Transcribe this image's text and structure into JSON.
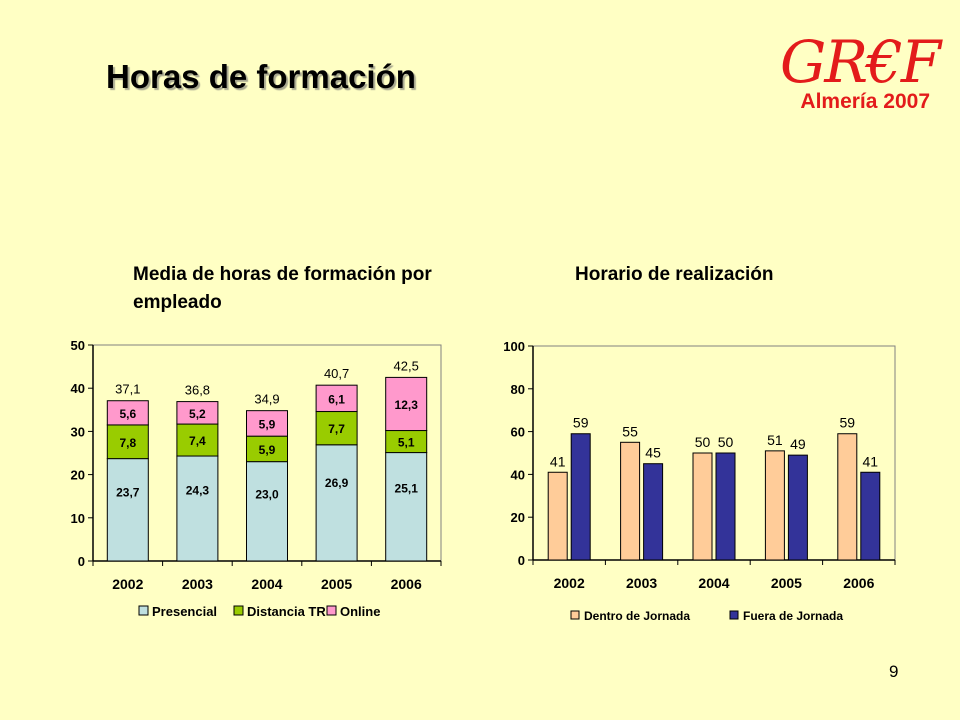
{
  "slide": {
    "title": "Horas de formación",
    "page_number": "9"
  },
  "logo": {
    "word": "GR€F",
    "subtitle": "Almería 2007",
    "color": "#E31B1B"
  },
  "chart_data": [
    {
      "type": "bar",
      "stacked": true,
      "title": "Media de horas de formación por empleado",
      "categories": [
        "2002",
        "2003",
        "2004",
        "2005",
        "2006"
      ],
      "series": [
        {
          "name": "Presencial",
          "values": [
            23.7,
            24.3,
            23.0,
            26.9,
            25.1
          ],
          "labels": [
            "23,7",
            "24,3",
            "23,0",
            "26,9",
            "25,1"
          ],
          "color": "#BFE0E0"
        },
        {
          "name": "Distancia TR",
          "values": [
            7.8,
            7.4,
            5.9,
            7.7,
            5.1
          ],
          "labels": [
            "7,8",
            "7,4",
            "5,9",
            "7,7",
            "5,1"
          ],
          "color": "#99CC00"
        },
        {
          "name": "Online",
          "values": [
            5.6,
            5.2,
            5.9,
            6.1,
            12.3
          ],
          "labels": [
            "5,6",
            "5,2",
            "5,9",
            "6,1",
            "12,3"
          ],
          "color": "#FF99CC"
        }
      ],
      "totals": [
        "37,1",
        "36,8",
        "34,9",
        "40,7",
        "42,5"
      ],
      "ylim": [
        0,
        50
      ],
      "yticks": [
        "0",
        "10",
        "20",
        "30",
        "40",
        "50"
      ],
      "legend_position": "bottom",
      "grid": false
    },
    {
      "type": "bar",
      "title": "Horario de realización",
      "categories": [
        "2002",
        "2003",
        "2004",
        "2005",
        "2006"
      ],
      "series": [
        {
          "name": "Dentro de Jornada",
          "values": [
            41,
            55,
            50,
            51,
            59
          ],
          "color": "#FFCC99"
        },
        {
          "name": "Fuera de Jornada",
          "values": [
            59,
            45,
            50,
            49,
            41
          ],
          "color": "#333399"
        }
      ],
      "ylim": [
        0,
        100
      ],
      "yticks": [
        "0",
        "20",
        "40",
        "60",
        "80",
        "100"
      ],
      "legend_position": "bottom",
      "grid": false
    }
  ]
}
